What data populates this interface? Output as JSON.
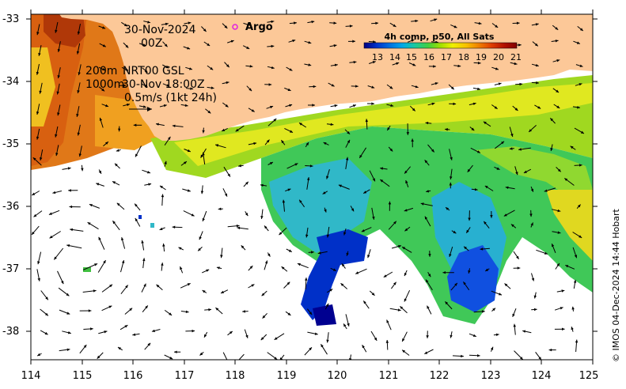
{
  "annotations": {
    "date_line1": "30-Nov-2024",
    "date_line2": "00Z",
    "depth_200": "200m",
    "depth_1000": "1000m",
    "product": "NRT00 GSL",
    "product_time": "30-Nov 18:00Z",
    "scale_label": "0.5m/s (1kt 24h)",
    "argo_label": "Argo"
  },
  "colorbar": {
    "title": "4h comp, p50, All Sats",
    "ticks": [
      "13",
      "14",
      "15",
      "16",
      "17",
      "18",
      "19",
      "20",
      "21"
    ],
    "colors": [
      "#000080",
      "#0030c8",
      "#0070e0",
      "#00a8e8",
      "#18c8a0",
      "#40d040",
      "#a0e000",
      "#f0f000",
      "#f8c000",
      "#f08000",
      "#e04000",
      "#b01000",
      "#800000"
    ]
  },
  "credit": "© IMOS 04-Dec-2024 14:44 Hobart",
  "axes": {
    "x_ticks": [
      "114",
      "115",
      "116",
      "117",
      "118",
      "119",
      "120",
      "121",
      "122",
      "123",
      "124",
      "125"
    ],
    "y_ticks": [
      "-33",
      "-34",
      "-35",
      "-36",
      "-37",
      "-38"
    ],
    "x_range": [
      114,
      125
    ],
    "y_range": [
      -38.5,
      -33
    ]
  },
  "colors": {
    "land": "#fcc898",
    "ocean_missing": "#ffffff"
  }
}
